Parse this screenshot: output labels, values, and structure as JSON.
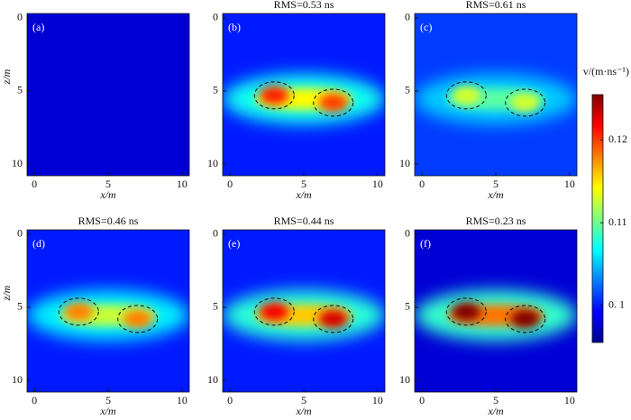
{
  "chart_data": [
    {
      "type": "heatmap",
      "label": "(a)",
      "xlabel": "x/m",
      "ylabel": "z/m",
      "xlim": [
        -0.5,
        10.5
      ],
      "ylim": [
        -0.3,
        10.8
      ],
      "xticks": [
        0,
        5,
        10
      ],
      "yticks": [
        0,
        5,
        10
      ],
      "background": 0.098,
      "anomalies": []
    },
    {
      "type": "heatmap",
      "title": "RMS=0.53 ns",
      "label": "(b)",
      "xlabel": "x/m",
      "xlim": [
        -0.5,
        10.5
      ],
      "ylim": [
        -0.3,
        10.8
      ],
      "xticks": [
        0,
        5,
        10
      ],
      "yticks": [
        0,
        5,
        10
      ],
      "background": 0.1,
      "anomalies": [
        {
          "x": 3,
          "z": 5.3,
          "peak": 0.121
        },
        {
          "x": 7,
          "z": 5.8,
          "peak": 0.12
        }
      ]
    },
    {
      "type": "heatmap",
      "title": "RMS=0.61 ns",
      "label": "(c)",
      "xlabel": "x/m",
      "xlim": [
        -0.5,
        10.5
      ],
      "ylim": [
        -0.3,
        10.8
      ],
      "xticks": [
        0,
        5,
        10
      ],
      "yticks": [
        0,
        5,
        10
      ],
      "background": 0.101,
      "anomalies": [
        {
          "x": 3,
          "z": 5.3,
          "peak": 0.113
        },
        {
          "x": 7,
          "z": 5.8,
          "peak": 0.113
        }
      ]
    },
    {
      "type": "heatmap",
      "title": "RMS=0.46 ns",
      "label": "(d)",
      "xlabel": "x/m",
      "ylabel": "z/m",
      "xlim": [
        -0.5,
        10.5
      ],
      "ylim": [
        -0.3,
        10.8
      ],
      "xticks": [
        0,
        5,
        10
      ],
      "yticks": [
        0,
        5,
        10
      ],
      "background": 0.1,
      "anomalies": [
        {
          "x": 3,
          "z": 5.3,
          "peak": 0.118
        },
        {
          "x": 7,
          "z": 5.8,
          "peak": 0.118
        }
      ]
    },
    {
      "type": "heatmap",
      "title": "RMS=0.44 ns",
      "label": "(e)",
      "xlabel": "x/m",
      "xlim": [
        -0.5,
        10.5
      ],
      "ylim": [
        -0.3,
        10.8
      ],
      "xticks": [
        0,
        5,
        10
      ],
      "yticks": [
        0,
        5,
        10
      ],
      "background": 0.1,
      "anomalies": [
        {
          "x": 3,
          "z": 5.3,
          "peak": 0.122
        },
        {
          "x": 7,
          "z": 5.8,
          "peak": 0.123
        }
      ]
    },
    {
      "type": "heatmap",
      "title": "RMS=0.23 ns",
      "label": "(f)",
      "xlabel": "x/m",
      "xlim": [
        -0.5,
        10.5
      ],
      "ylim": [
        -0.3,
        10.8
      ],
      "xticks": [
        0,
        5,
        10
      ],
      "yticks": [
        0,
        5,
        10
      ],
      "background": 0.098,
      "anomalies": [
        {
          "x": 3,
          "z": 5.3,
          "peak": 0.127
        },
        {
          "x": 7,
          "z": 5.8,
          "peak": 0.127
        }
      ]
    },
    {
      "type": "colorbar",
      "label": "v/(m·ns⁻¹)",
      "ylim": [
        0.0955,
        0.1255
      ],
      "yticks": [
        {
          "value": 0.1,
          "label": "0. 1"
        },
        0.11,
        0.12
      ]
    }
  ]
}
